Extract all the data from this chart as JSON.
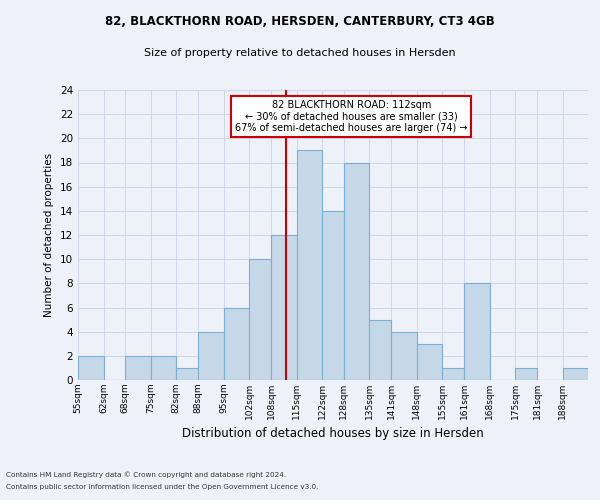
{
  "title1": "82, BLACKTHORN ROAD, HERSDEN, CANTERBURY, CT3 4GB",
  "title2": "Size of property relative to detached houses in Hersden",
  "xlabel": "Distribution of detached houses by size in Hersden",
  "ylabel": "Number of detached properties",
  "footnote1": "Contains HM Land Registry data © Crown copyright and database right 2024.",
  "footnote2": "Contains public sector information licensed under the Open Government Licence v3.0.",
  "bin_labels": [
    "55sqm",
    "62sqm",
    "68sqm",
    "75sqm",
    "82sqm",
    "88sqm",
    "95sqm",
    "102sqm",
    "108sqm",
    "115sqm",
    "122sqm",
    "128sqm",
    "135sqm",
    "141sqm",
    "148sqm",
    "155sqm",
    "161sqm",
    "168sqm",
    "175sqm",
    "181sqm",
    "188sqm"
  ],
  "bin_edges": [
    55,
    62,
    68,
    75,
    82,
    88,
    95,
    102,
    108,
    115,
    122,
    128,
    135,
    141,
    148,
    155,
    161,
    168,
    175,
    181,
    188,
    195
  ],
  "bar_values": [
    2,
    0,
    2,
    2,
    1,
    4,
    6,
    10,
    12,
    19,
    14,
    18,
    5,
    4,
    3,
    1,
    8,
    0,
    1,
    0,
    1
  ],
  "bar_color": "#c5d8e8",
  "bar_edgecolor": "#7bafd4",
  "grid_color": "#d0d8e8",
  "bg_color": "#eef2f8",
  "property_line_x": 112,
  "property_line_color": "#cc0000",
  "annotation_text": "82 BLACKTHORN ROAD: 112sqm\n← 30% of detached houses are smaller (33)\n67% of semi-detached houses are larger (74) →",
  "annotation_box_edgecolor": "#cc0000",
  "annotation_box_facecolor": "#ffffff",
  "ylim": [
    0,
    24
  ],
  "yticks": [
    0,
    2,
    4,
    6,
    8,
    10,
    12,
    14,
    16,
    18,
    20,
    22,
    24
  ]
}
